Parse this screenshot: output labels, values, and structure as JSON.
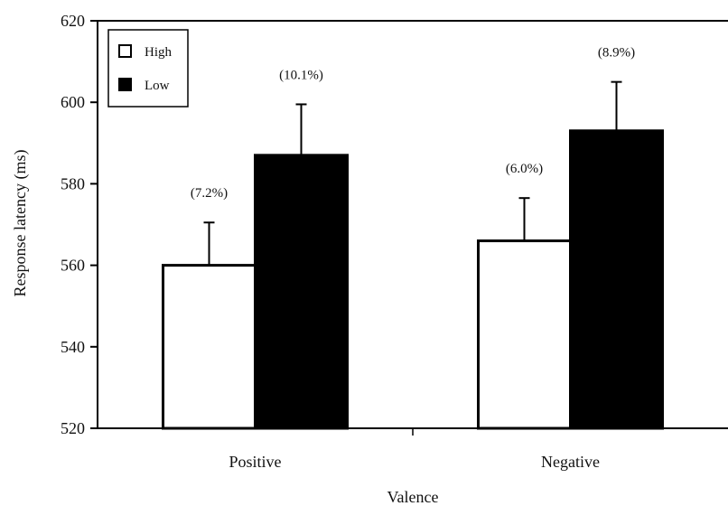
{
  "chart_data": {
    "type": "bar",
    "xlabel": "Valence",
    "ylabel": "Response latency (ms)",
    "ylim": [
      520,
      620
    ],
    "yticks": [
      520,
      540,
      560,
      580,
      600,
      620
    ],
    "categories": [
      "Positive",
      "Negative"
    ],
    "series": [
      {
        "name": "High",
        "values": [
          560,
          566
        ],
        "errors": [
          10.5,
          10.5
        ],
        "annotations": [
          "(7.2%)",
          "(6.0%)"
        ],
        "color": "#ffffff"
      },
      {
        "name": "Low",
        "values": [
          587,
          593
        ],
        "errors": [
          12.5,
          12
        ],
        "annotations": [
          "(10.1%)",
          "(8.9%)"
        ],
        "color": "#000000"
      }
    ],
    "legend": "top-left",
    "grid": false
  }
}
